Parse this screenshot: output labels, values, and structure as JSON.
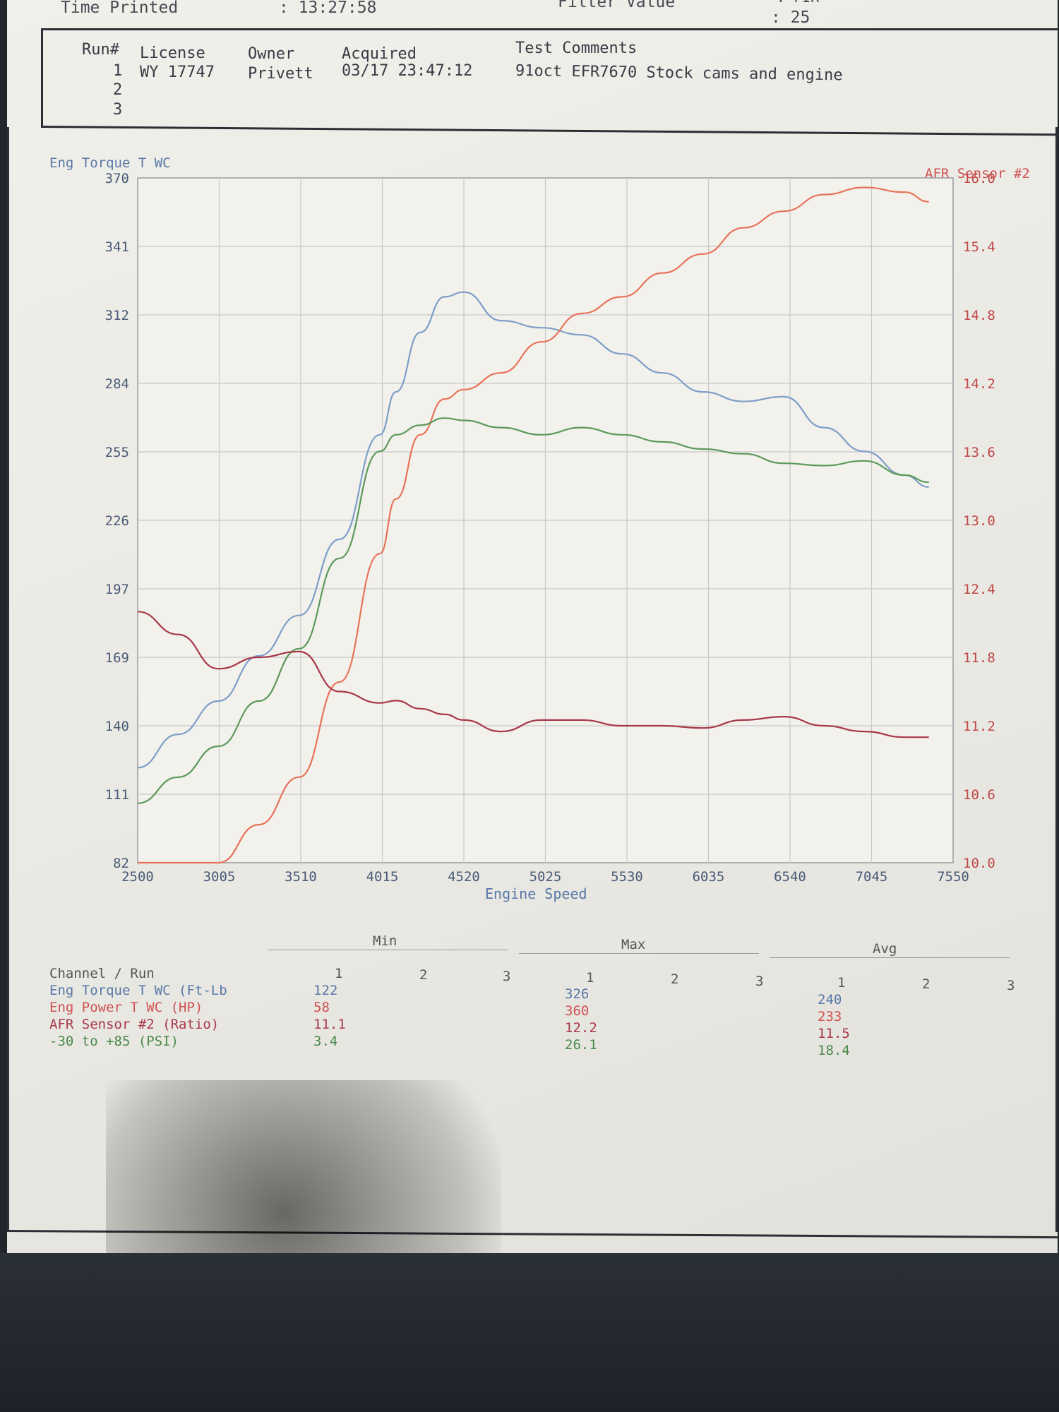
{
  "header": {
    "time_printed_label": "Time Printed",
    "time_printed_value": ": 13:27:58",
    "filter_label": "Filter Value",
    "filter_value": ": 25",
    "filter_extra": ": FIR"
  },
  "runs_table": {
    "columns": [
      "Run#",
      "License",
      "Owner",
      "Acquired",
      "Test Comments"
    ],
    "rows": [
      {
        "run": "1",
        "license": "WY 17747",
        "owner": "Privett",
        "acquired": "03/17 23:47:12",
        "comments": "91oct EFR7670 Stock cams and engine"
      },
      {
        "run": "2"
      },
      {
        "run": "3"
      }
    ]
  },
  "chart_data": {
    "type": "line",
    "xlabel": "Engine Speed",
    "xlim": [
      2500,
      7550
    ],
    "xticks": [
      "2500",
      "3005",
      "3510",
      "4015",
      "4520",
      "5025",
      "5530",
      "6035",
      "6540",
      "7045",
      "7550"
    ],
    "left_axis": {
      "label": "Eng Torque T WC",
      "ylim": [
        82,
        370
      ],
      "ticks": [
        "370",
        "341",
        "312",
        "284",
        "255",
        "226",
        "197",
        "169",
        "140",
        "111",
        "82"
      ],
      "color": "#5878a8"
    },
    "right_axis": {
      "label": "AFR Sensor #2",
      "ylim": [
        10.0,
        16.0
      ],
      "ticks": [
        "16.0",
        "15.4",
        "14.8",
        "14.2",
        "13.6",
        "13.0",
        "12.4",
        "11.8",
        "11.2",
        "10.6",
        "10.0"
      ],
      "color": "#d05050"
    },
    "grid": true,
    "x": [
      2500,
      2750,
      3000,
      3250,
      3500,
      3750,
      4000,
      4100,
      4250,
      4400,
      4520,
      4750,
      5000,
      5250,
      5500,
      5750,
      6000,
      6250,
      6500,
      6750,
      7000,
      7250,
      7400
    ],
    "series": [
      {
        "name": "Eng Torque T WC (Ft-Lb)",
        "axis": "left",
        "color": "#7e9ec8",
        "values": [
          122,
          136,
          150,
          169,
          186,
          218,
          262,
          280,
          305,
          320,
          322,
          310,
          307,
          304,
          296,
          288,
          280,
          276,
          278,
          265,
          255,
          245,
          240
        ]
      },
      {
        "name": "Eng Power T WC (HP)",
        "axis": "left",
        "color": "#e8735a",
        "values": [
          82,
          82,
          82,
          98,
          118,
          158,
          212,
          235,
          262,
          277,
          281,
          288,
          301,
          313,
          320,
          330,
          338,
          349,
          356,
          363,
          366,
          364,
          360
        ]
      },
      {
        "name": "-30 to +85 (PSI)",
        "axis": "left",
        "color": "#5b9a5b",
        "values": [
          107,
          118,
          131,
          150,
          172,
          210,
          255,
          262,
          266,
          269,
          268,
          265,
          262,
          265,
          262,
          259,
          256,
          254,
          250,
          249,
          251,
          245,
          242
        ]
      },
      {
        "name": "AFR Sensor #2 (Ratio)",
        "axis": "right",
        "color": "#a83848",
        "values": [
          12.2,
          12.0,
          11.7,
          11.8,
          11.85,
          11.5,
          11.4,
          11.42,
          11.35,
          11.3,
          11.25,
          11.15,
          11.25,
          11.25,
          11.2,
          11.2,
          11.18,
          11.25,
          11.28,
          11.2,
          11.15,
          11.1,
          11.1
        ]
      }
    ]
  },
  "summary_table": {
    "groups": [
      "Min",
      "Max",
      "Avg"
    ],
    "channel_header": "Channel / Run",
    "run_numbers": [
      "1",
      "2",
      "3"
    ],
    "rows": [
      {
        "channel": "Eng Torque T WC (Ft-Lb",
        "color": "#5878a8",
        "min": "122",
        "max": "326",
        "avg": "240"
      },
      {
        "channel": "Eng Power T WC (HP)",
        "color": "#d05050",
        "min": "58",
        "max": "360",
        "avg": "233"
      },
      {
        "channel": "AFR Sensor #2 (Ratio)",
        "color": "#a83848",
        "min": "11.1",
        "max": "12.2",
        "avg": "11.5"
      },
      {
        "channel": "-30 to +85 (PSI)",
        "color": "#4a8a4a",
        "min": "3.4",
        "max": "26.1",
        "avg": "18.4"
      }
    ]
  }
}
